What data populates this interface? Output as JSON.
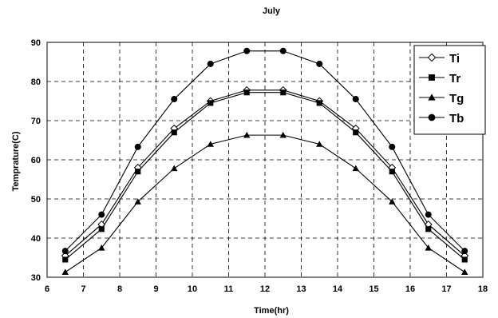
{
  "chart_data": {
    "type": "line",
    "title": "July",
    "xlabel": "Time(hr)",
    "ylabel": "Temprature(C)",
    "xlim": [
      6,
      18
    ],
    "ylim": [
      30,
      90
    ],
    "xticks": [
      6,
      7,
      8,
      9,
      10,
      11,
      12,
      13,
      14,
      15,
      16,
      17,
      18
    ],
    "yticks": [
      30,
      40,
      50,
      60,
      70,
      80,
      90
    ],
    "grid": true,
    "legend_position": "top-right",
    "x": [
      6.5,
      7.5,
      8.5,
      9.5,
      10.5,
      11.5,
      12.5,
      13.5,
      14.5,
      15.5,
      16.5,
      17.5
    ],
    "series": [
      {
        "name": "Ti",
        "marker": "diamond-open",
        "values": [
          35.5,
          43.5,
          58.0,
          68.0,
          75.0,
          77.8,
          77.8,
          75.0,
          68.0,
          58.0,
          43.5,
          35.5
        ]
      },
      {
        "name": "Tr",
        "marker": "square",
        "values": [
          34.5,
          42.3,
          57.0,
          67.0,
          74.5,
          77.2,
          77.2,
          74.5,
          67.0,
          57.0,
          42.3,
          34.5
        ]
      },
      {
        "name": "Tg",
        "marker": "triangle",
        "values": [
          31.3,
          37.5,
          49.3,
          57.8,
          64.0,
          66.3,
          66.3,
          64.0,
          57.8,
          49.3,
          37.5,
          31.3
        ]
      },
      {
        "name": "Tb",
        "marker": "circle",
        "values": [
          36.7,
          46.0,
          63.3,
          75.5,
          84.5,
          87.8,
          87.8,
          84.5,
          75.5,
          63.3,
          46.0,
          36.7
        ]
      }
    ]
  }
}
